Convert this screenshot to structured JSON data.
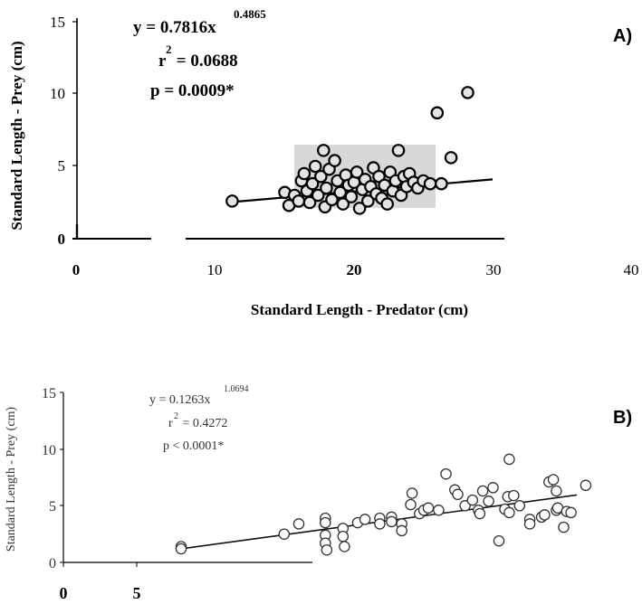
{
  "chart_data": [
    {
      "type": "scatter",
      "panel_label": "A)",
      "xlabel": "Standard Length - Predator (cm)",
      "ylabel": "Standard Length - Prey (cm)",
      "xlim": [
        0,
        40
      ],
      "ylim": [
        0,
        15
      ],
      "xticks": [
        0,
        10,
        20,
        30,
        40
      ],
      "yticks": [
        0,
        5,
        10,
        15
      ],
      "annotations": [
        "y = 0.7816x",
        "0.4865",
        "r",
        "2",
        " = 0.0688",
        "p = 0.0009*"
      ],
      "trend": {
        "x": [
          11,
          30
        ],
        "y": [
          2.52,
          4.1
        ]
      },
      "series": [
        {
          "values": [
            [
              11.2,
              2.6
            ],
            [
              15.0,
              3.2
            ],
            [
              15.3,
              2.3
            ],
            [
              15.7,
              3.0
            ],
            [
              16.0,
              2.6
            ],
            [
              16.2,
              4.0
            ],
            [
              16.4,
              4.5
            ],
            [
              16.6,
              3.3
            ],
            [
              16.8,
              2.5
            ],
            [
              17.0,
              3.8
            ],
            [
              17.2,
              5.0
            ],
            [
              17.4,
              3.0
            ],
            [
              17.6,
              4.3
            ],
            [
              17.8,
              6.1
            ],
            [
              17.9,
              2.2
            ],
            [
              18.0,
              3.5
            ],
            [
              18.2,
              4.8
            ],
            [
              18.4,
              2.7
            ],
            [
              18.6,
              5.4
            ],
            [
              18.8,
              4.0
            ],
            [
              19.0,
              3.2
            ],
            [
              19.2,
              2.4
            ],
            [
              19.4,
              4.4
            ],
            [
              19.6,
              3.7
            ],
            [
              19.8,
              2.9
            ],
            [
              20.0,
              3.9
            ],
            [
              20.2,
              4.6
            ],
            [
              20.4,
              2.1
            ],
            [
              20.6,
              3.4
            ],
            [
              20.8,
              4.1
            ],
            [
              21.0,
              2.6
            ],
            [
              21.2,
              3.6
            ],
            [
              21.4,
              4.9
            ],
            [
              21.6,
              3.1
            ],
            [
              21.8,
              4.3
            ],
            [
              22.0,
              2.8
            ],
            [
              22.2,
              3.7
            ],
            [
              22.4,
              2.4
            ],
            [
              22.6,
              4.6
            ],
            [
              22.8,
              3.3
            ],
            [
              23.0,
              4.0
            ],
            [
              23.2,
              6.1
            ],
            [
              23.4,
              3.0
            ],
            [
              23.6,
              4.3
            ],
            [
              23.8,
              3.6
            ],
            [
              24.0,
              4.5
            ],
            [
              24.3,
              3.9
            ],
            [
              24.6,
              3.5
            ],
            [
              25.0,
              4.0
            ],
            [
              25.5,
              3.8
            ],
            [
              26.0,
              8.7
            ],
            [
              26.3,
              3.8
            ],
            [
              27.0,
              5.6
            ],
            [
              28.2,
              10.1
            ]
          ]
        }
      ]
    },
    {
      "type": "scatter",
      "panel_label": "B)",
      "ylabel": "Standard Length - Prey (cm)",
      "xlim": [
        0,
        40
      ],
      "ylim": [
        0,
        15
      ],
      "xticks": [
        0,
        5
      ],
      "yticks": [
        0,
        5,
        10,
        15
      ],
      "annotations": [
        "y = 0.1263x",
        "1.0694",
        "r",
        "2",
        " = 0.4272",
        "p < 0.0001*"
      ],
      "trend": {
        "x": [
          8.0,
          34.9
        ],
        "y": [
          1.2,
          5.95
        ]
      },
      "series": [
        {
          "values": [
            [
              8.0,
              1.4
            ],
            [
              8.0,
              1.2
            ],
            [
              15.0,
              2.5
            ],
            [
              16.0,
              3.4
            ],
            [
              17.8,
              3.9
            ],
            [
              17.8,
              3.5
            ],
            [
              17.8,
              2.4
            ],
            [
              17.8,
              1.7
            ],
            [
              17.9,
              1.1
            ],
            [
              19.0,
              3.0
            ],
            [
              19.0,
              2.3
            ],
            [
              19.1,
              1.4
            ],
            [
              20.0,
              3.5
            ],
            [
              20.5,
              3.8
            ],
            [
              21.5,
              3.9
            ],
            [
              21.5,
              3.4
            ],
            [
              22.3,
              4.0
            ],
            [
              22.3,
              3.6
            ],
            [
              23.0,
              3.4
            ],
            [
              23.0,
              2.8
            ],
            [
              23.6,
              5.1
            ],
            [
              23.7,
              6.1
            ],
            [
              24.2,
              4.3
            ],
            [
              24.5,
              4.6
            ],
            [
              24.8,
              4.8
            ],
            [
              25.5,
              4.6
            ],
            [
              26.0,
              7.8
            ],
            [
              26.6,
              6.4
            ],
            [
              26.8,
              6.0
            ],
            [
              27.3,
              5.0
            ],
            [
              27.8,
              5.5
            ],
            [
              28.2,
              4.6
            ],
            [
              28.3,
              4.3
            ],
            [
              28.5,
              6.3
            ],
            [
              28.9,
              5.4
            ],
            [
              29.2,
              6.6
            ],
            [
              29.6,
              1.9
            ],
            [
              30.0,
              4.7
            ],
            [
              30.2,
              5.8
            ],
            [
              30.3,
              9.1
            ],
            [
              30.3,
              4.4
            ],
            [
              30.6,
              5.9
            ],
            [
              31.0,
              5.0
            ],
            [
              31.7,
              3.8
            ],
            [
              31.7,
              3.4
            ],
            [
              32.5,
              4.0
            ],
            [
              32.7,
              4.2
            ],
            [
              33.0,
              7.1
            ],
            [
              33.3,
              7.3
            ],
            [
              33.5,
              4.6
            ],
            [
              33.5,
              6.3
            ],
            [
              33.6,
              4.8
            ],
            [
              34.0,
              3.1
            ],
            [
              34.2,
              4.5
            ],
            [
              34.5,
              4.4
            ],
            [
              35.5,
              6.8
            ]
          ]
        }
      ]
    }
  ]
}
